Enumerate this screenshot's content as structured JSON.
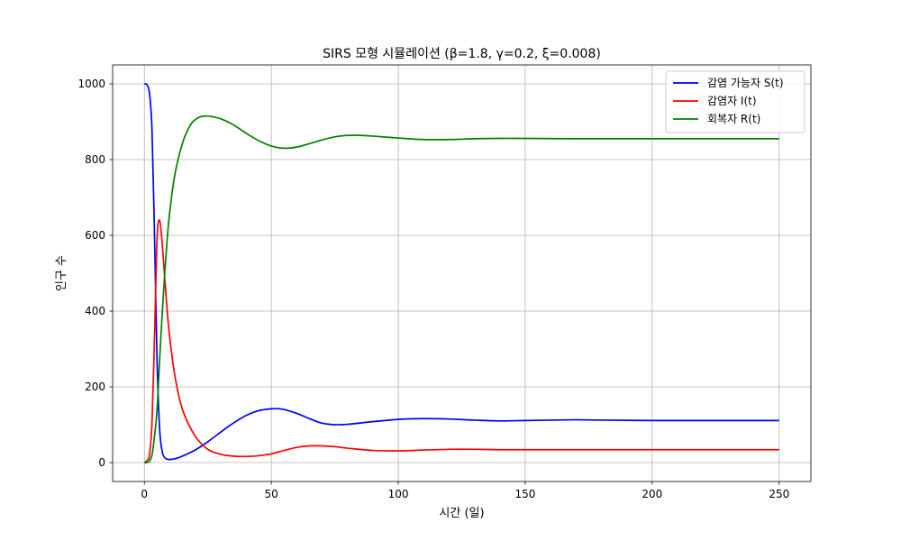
{
  "chart_data": {
    "type": "line",
    "title": "SIRS 모형 시뮬레이션 (β=1.8, γ=0.2, ξ=0.008)",
    "xlabel": "시간 (일)",
    "ylabel": "인구 수",
    "xlim": [
      -12.5,
      262.5
    ],
    "ylim": [
      -50,
      1050
    ],
    "xticks": [
      0,
      50,
      100,
      150,
      200,
      250
    ],
    "yticks": [
      0,
      200,
      400,
      600,
      800,
      1000
    ],
    "grid": true,
    "legend_position": "top-right",
    "series": [
      {
        "name": "감염 가능자 S(t)",
        "color": "#0000ff",
        "x": [
          0,
          1,
          2,
          3,
          4,
          5,
          6,
          7,
          8,
          9,
          10,
          12,
          15,
          20,
          25,
          30,
          35,
          40,
          45,
          50,
          53,
          55,
          60,
          65,
          70,
          75,
          80,
          90,
          100,
          110,
          120,
          130,
          140,
          150,
          160,
          170,
          180,
          200,
          220,
          250
        ],
        "y": [
          1000,
          998,
          975,
          880,
          600,
          270,
          90,
          30,
          13,
          9,
          8,
          10,
          17,
          33,
          55,
          80,
          104,
          124,
          137,
          142,
          142,
          140,
          130,
          116,
          104,
          100,
          101,
          108,
          114,
          116,
          115,
          112,
          110,
          111,
          112,
          113,
          112,
          111,
          111,
          111
        ]
      },
      {
        "name": "감염자 I(t)",
        "color": "#ff0000",
        "x": [
          0,
          1,
          2,
          3,
          4,
          5,
          6,
          7,
          8,
          9,
          10,
          12,
          15,
          20,
          25,
          30,
          35,
          40,
          45,
          50,
          55,
          60,
          65,
          70,
          75,
          80,
          90,
          100,
          110,
          120,
          130,
          140,
          150,
          170,
          200,
          250
        ],
        "y": [
          0,
          5,
          20,
          105,
          330,
          590,
          640,
          580,
          490,
          400,
          330,
          230,
          140,
          70,
          35,
          22,
          17,
          16,
          18,
          23,
          32,
          40,
          44,
          44,
          42,
          38,
          32,
          31,
          33,
          35,
          35,
          34,
          34,
          34,
          34,
          34
        ]
      },
      {
        "name": "회복자 R(t)",
        "color": "#008000",
        "x": [
          0,
          1,
          2,
          3,
          4,
          5,
          6,
          7,
          8,
          9,
          10,
          12,
          15,
          18,
          20,
          22,
          25,
          30,
          35,
          40,
          45,
          50,
          55,
          60,
          65,
          70,
          75,
          80,
          85,
          90,
          100,
          110,
          120,
          130,
          140,
          150,
          170,
          200,
          250
        ],
        "y": [
          0,
          0,
          4,
          20,
          70,
          140,
          270,
          390,
          497,
          591,
          662,
          760,
          843,
          890,
          905,
          913,
          915,
          908,
          892,
          870,
          850,
          836,
          830,
          833,
          842,
          852,
          860,
          864,
          864,
          862,
          857,
          853,
          853,
          855,
          856,
          856,
          855,
          855,
          855
        ]
      }
    ]
  }
}
